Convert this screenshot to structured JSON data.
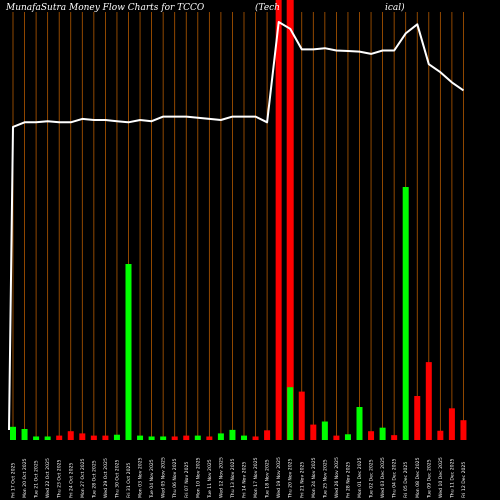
{
  "chart_data": {
    "type": "bar",
    "title": "MunafaSutra  Money Flow  Charts for TCCO",
    "subtitle_left": "(Tech",
    "subtitle_right": "ical)",
    "background": "#000000",
    "grid_color": "#b35900",
    "up_color": "#00ff00",
    "down_color": "#ff0000",
    "line_color": "#ffffff",
    "highlight_color": "#ff0000",
    "grid": true,
    "highlight_index": 24,
    "categories": [
      "Fri 17 Oct",
      "Mon 20 Oct",
      "Tue 21 Oct",
      "Wed 22 Oct",
      "Thu 23 Oct",
      "Fri 24 Oct",
      "Mon 27 Oct",
      "Tue 28 Oct",
      "Wed 29 Oct",
      "Thu 30 Oct",
      "Fri 31 Oct",
      "Mon 03 Nov",
      "Tue 04 Nov",
      "Wed 05 Nov",
      "Thu 06 Nov",
      "Fri 07 Nov",
      "Mon 10 Nov",
      "Tue 11 Nov",
      "Wed 12 Nov",
      "Thu 13 Nov",
      "Fri 14 Nov",
      "Mon 17 Nov",
      "Tue 18 Nov",
      "Wed 19 Nov",
      "Thu 20 Nov",
      "Fri 21 Nov",
      "Mon 24 Nov",
      "Tue 25 Nov",
      "Wed 26 Nov",
      "Fri 28 Nov",
      "Mon 01 Dec",
      "Tue 02 Dec",
      "Wed 03 Dec",
      "Thu 04 Dec",
      "Fri 05 Dec",
      "Mon 08 Dec",
      "Tue 09 Dec",
      "Wed 10 Dec",
      "Thu 11 Dec",
      "Fri 12 Dec"
    ],
    "x_tick_labels": [
      "Fri 17 Oct 2025",
      "Mon 20 Oct 2025",
      "Tue 21 Oct 2025",
      "Wed 22 Oct 2025",
      "Thu 23 Oct 2025",
      "Fri 24 Oct 2025",
      "Mon 27 Oct 2025",
      "Tue 28 Oct 2025",
      "Wed 29 Oct 2025",
      "Thu 30 Oct 2025",
      "Fri 31 Oct 2025",
      "Mon 03 Nov 2025",
      "Tue 04 Nov 2025",
      "Wed 05 Nov 2025",
      "Thu 06 Nov 2025",
      "Fri 07 Nov 2025",
      "Mon 10 Nov 2025",
      "Tue 11 Nov 2025",
      "Wed 12 Nov 2025",
      "Thu 13 Nov 2025",
      "Fri 14 Nov 2025",
      "Mon 17 Nov 2025",
      "Tue 18 Nov 2025",
      "Wed 19 Nov 2025",
      "Thu 20 Nov 2025",
      "Fri 21 Nov 2025",
      "Mon 24 Nov 2025",
      "Tue 25 Nov 2025",
      "Wed 26 Nov 2025",
      "Fri 28 Nov 2025",
      "Mon 01 Dec 2025",
      "Tue 02 Dec 2025",
      "Wed 03 Dec 2025",
      "Thu 04 Dec 2025",
      "Fri 05 Dec 2025",
      "Mon 08 Dec 2025",
      "Tue 09 Dec 2025",
      "Wed 10 Dec 2025",
      "Thu 11 Dec 2025",
      "Fri 12 Dec 2025"
    ],
    "volume_units_range": [
      0,
      100
    ],
    "volume": [
      3,
      2.5,
      0.8,
      0.8,
      1,
      2,
      1.5,
      1,
      1,
      1.2,
      40,
      1,
      0.8,
      0.8,
      0.8,
      1,
      1,
      0.8,
      1.5,
      2.3,
      1,
      0.8,
      2.2,
      100,
      12,
      11,
      3.5,
      4.2,
      1,
      1.3,
      7.5,
      2,
      2.8,
      1.1,
      57.5,
      10,
      17.7,
      2.1,
      7.2,
      4.5
    ],
    "direction": [
      "up",
      "up",
      "up",
      "up",
      "down",
      "down",
      "down",
      "down",
      "down",
      "up",
      "up",
      "up",
      "up",
      "up",
      "down",
      "down",
      "up",
      "down",
      "up",
      "up",
      "up",
      "down",
      "down",
      "down",
      "up",
      "down",
      "down",
      "up",
      "down",
      "up",
      "up",
      "down",
      "up",
      "down",
      "up",
      "down",
      "down",
      "down",
      "down",
      "down"
    ],
    "money_flow_range": [
      0,
      100
    ],
    "money_flow": [
      54,
      56,
      56,
      56.5,
      56,
      56,
      57.5,
      57,
      57,
      56.5,
      56,
      57,
      56.5,
      58.5,
      58.5,
      58.5,
      58,
      57.5,
      57,
      58.5,
      58.5,
      58.5,
      56,
      100,
      97,
      88,
      88,
      88.5,
      87.5,
      87.3,
      87,
      86,
      87.5,
      87.5,
      95,
      99,
      81.5,
      78,
      73.5,
      70
    ]
  }
}
